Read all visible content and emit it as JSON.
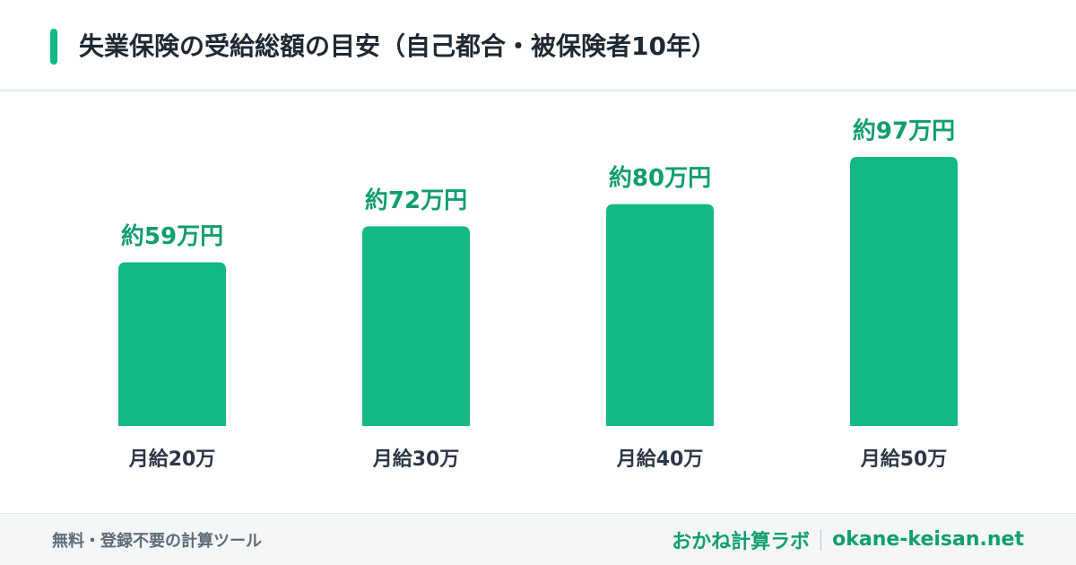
{
  "chart_data": {
    "type": "bar",
    "title": "失業保険の受給総額の目安（自己都合・被保険者10年）",
    "categories": [
      "月給20万",
      "月給30万",
      "月給40万",
      "月給50万"
    ],
    "values": [
      59,
      72,
      80,
      97
    ],
    "value_labels": [
      "約59万円",
      "約72万円",
      "約80万円",
      "約97万円"
    ],
    "color": "#13b884"
  },
  "footer": {
    "tagline": "無料・登録不要の計算ツール",
    "brand": "おかね計算ラボ",
    "domain": "okane-keisan.net"
  }
}
